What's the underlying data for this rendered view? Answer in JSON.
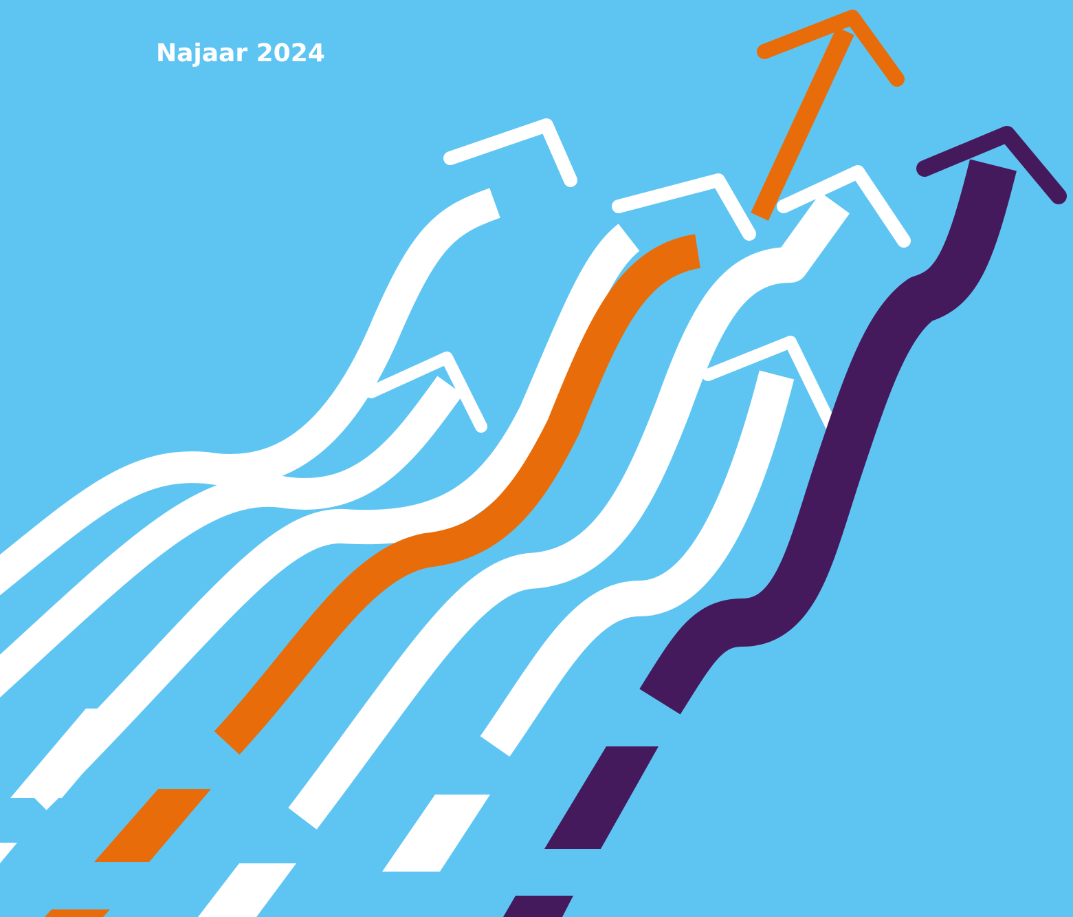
{
  "cover": {
    "label": "Najaar 2024"
  }
}
